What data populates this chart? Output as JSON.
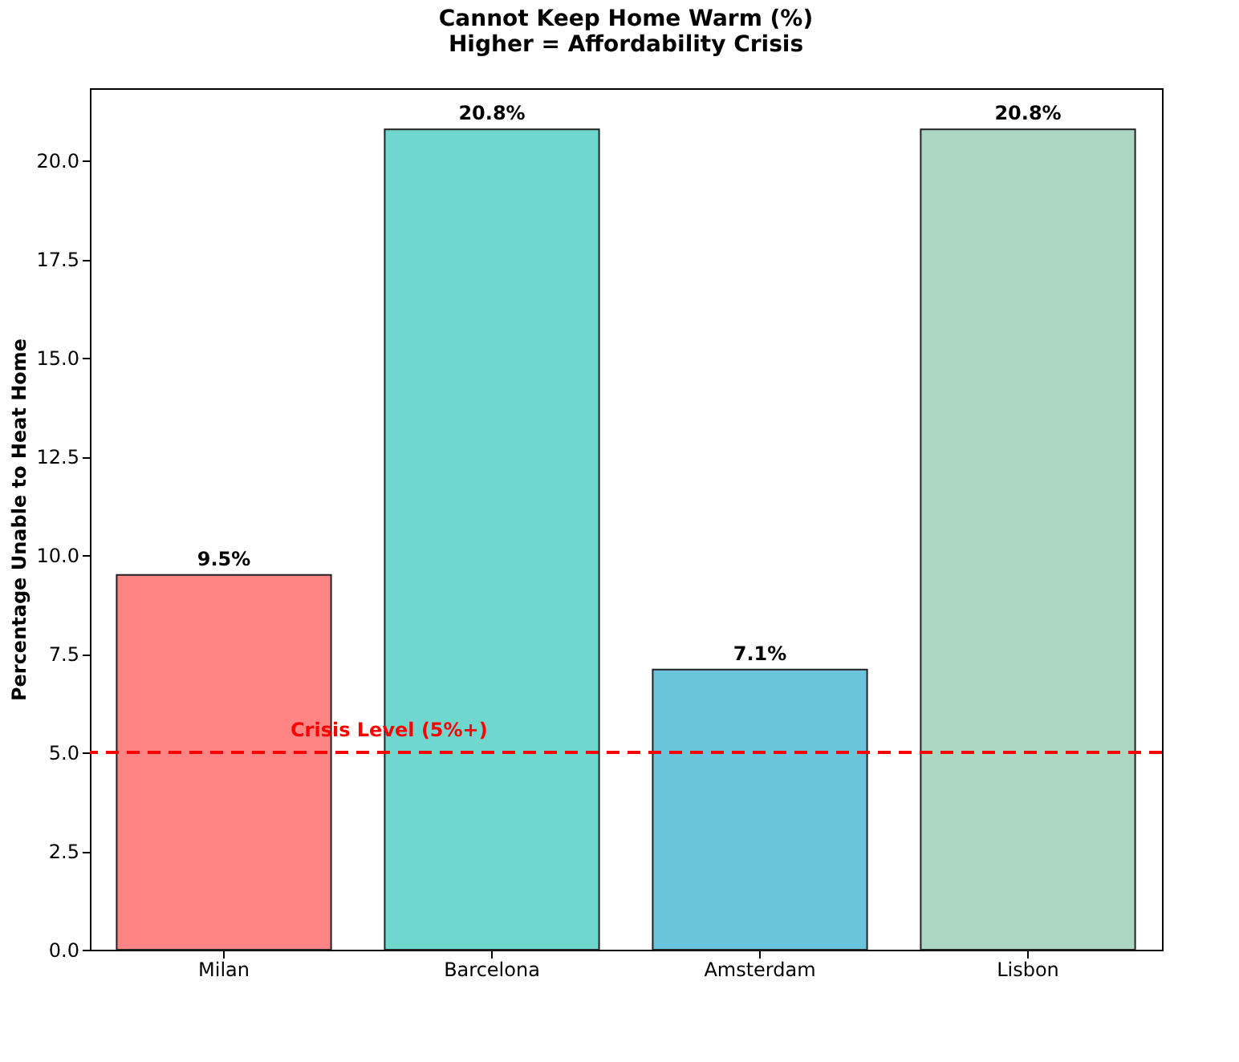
{
  "chart_data": {
    "type": "bar",
    "title": "Cannot Keep Home Warm (%)\nHigher = Affordability Crisis",
    "ylabel": "Percentage Unable to Heat Home",
    "categories": [
      "Milan",
      "Barcelona",
      "Amsterdam",
      "Lisbon"
    ],
    "values": [
      9.5,
      20.8,
      7.1,
      20.8
    ],
    "colors": [
      "#fe8584",
      "#70d7cf",
      "#6ac4db",
      "#acd7c2"
    ],
    "value_labels": [
      "9.5%",
      "20.8%",
      "7.1%",
      "20.8%"
    ],
    "ylim": [
      0,
      21.84
    ],
    "yticks": [
      {
        "value": 0,
        "label": "0.0"
      },
      2.5,
      {
        "value": 5,
        "label": "5.0"
      },
      7.5,
      {
        "value": 10,
        "label": "10.0"
      },
      12.5,
      {
        "value": 15,
        "label": "15.0"
      },
      17.5,
      {
        "value": 20,
        "label": "20.0"
      }
    ],
    "ref_lines": [
      {
        "axis": "y",
        "value": 5,
        "label": "Crisis Level (5%+)",
        "color": "#ff0000",
        "line_style": "dashed"
      }
    ],
    "grid": false
  }
}
